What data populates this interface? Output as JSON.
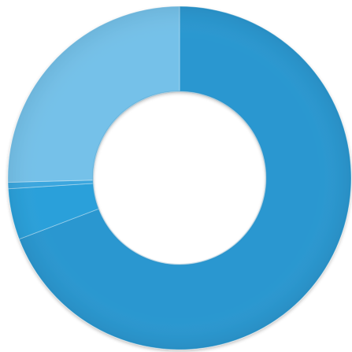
{
  "chart_data": {
    "type": "pie",
    "style": "donut",
    "title": "",
    "legend": "none",
    "slices": [
      {
        "value": 69.2,
        "color": "#2a97d0"
      },
      {
        "value": 4.8,
        "color": "#2aa0da"
      },
      {
        "value": 0.6,
        "color": "#3aa6de"
      },
      {
        "value": 25.4,
        "color": "#74c1e9"
      }
    ],
    "start_angle_deg": 0,
    "direction": "clockwise"
  }
}
